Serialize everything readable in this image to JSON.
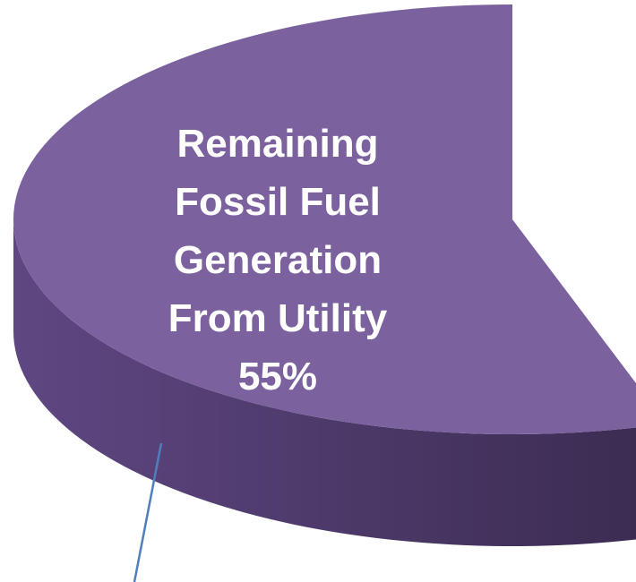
{
  "chart_data": {
    "type": "pie",
    "categories": [
      "Remaining Fossil Fuel Generation From Utility"
    ],
    "values": [
      55
    ],
    "value_labels": [
      "55%"
    ],
    "colors": [
      "#7b619e"
    ]
  }
}
